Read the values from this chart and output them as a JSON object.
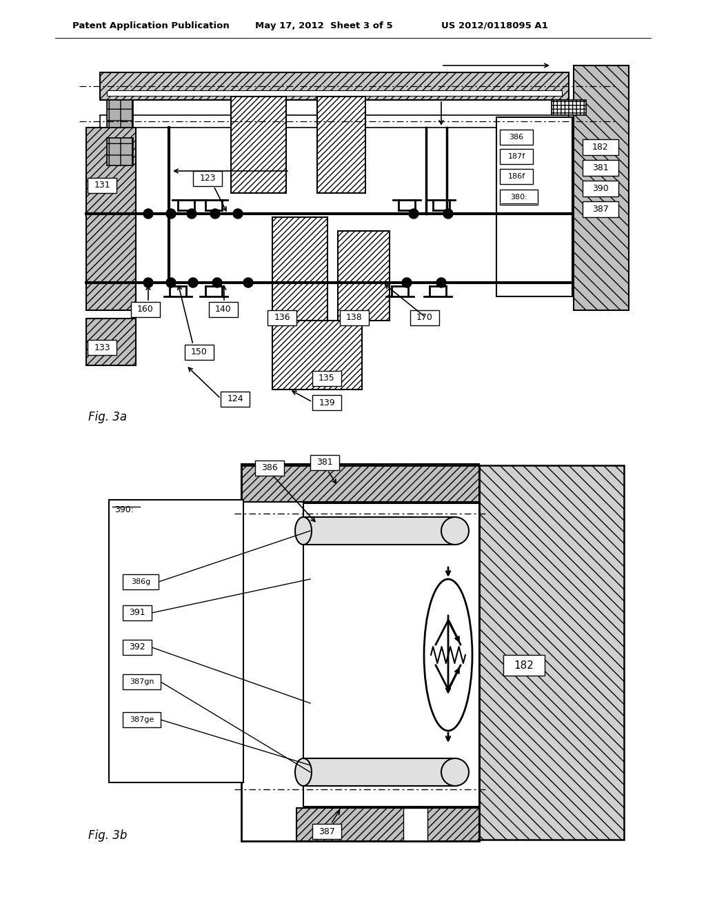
{
  "header_left": "Patent Application Publication",
  "header_center": "May 17, 2012  Sheet 3 of 5",
  "header_right": "US 2012/0118095 A1",
  "fig3a_label": "Fig. 3a",
  "fig3b_label": "Fig. 3b",
  "bg_color": "#ffffff"
}
